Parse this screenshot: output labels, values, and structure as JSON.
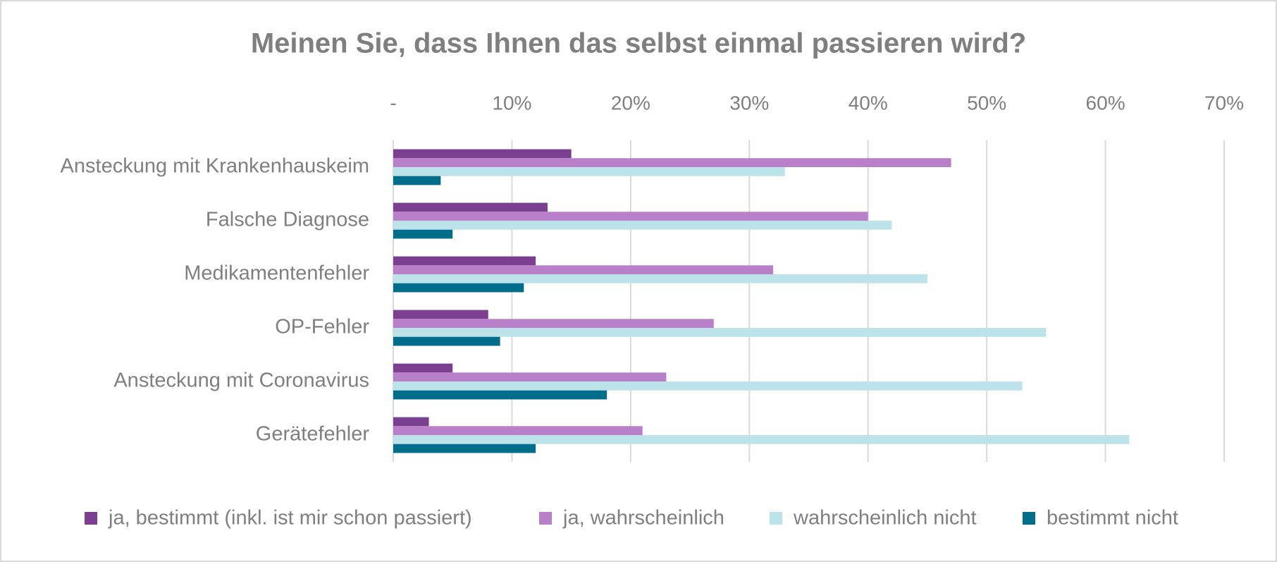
{
  "chart_data": {
    "type": "bar",
    "orientation": "horizontal",
    "title": "Meinen Sie, dass Ihnen das selbst einmal passieren wird?",
    "categories": [
      "Ansteckung mit Krankenhauskeim",
      "Falsche Diagnose",
      "Medikamentenfehler",
      "OP-Fehler",
      "Ansteckung mit Coronavirus",
      "Gerätefehler"
    ],
    "series": [
      {
        "name": "ja, bestimmt (inkl. ist mir schon passiert)",
        "color": "#7b3f8f",
        "values": [
          15,
          13,
          12,
          8,
          5,
          3
        ]
      },
      {
        "name": "ja, wahrscheinlich",
        "color": "#b97fc9",
        "values": [
          47,
          40,
          32,
          27,
          23,
          21
        ]
      },
      {
        "name": "wahrscheinlich nicht",
        "color": "#bde3ea",
        "values": [
          33,
          42,
          45,
          55,
          53,
          62
        ]
      },
      {
        "name": "bestimmt nicht",
        "color": "#006e8a",
        "values": [
          4,
          5,
          11,
          9,
          18,
          12
        ]
      }
    ],
    "xlim": [
      0,
      70
    ],
    "xticks": [
      {
        "value": 0,
        "label": "-"
      },
      {
        "value": 10,
        "label": "10%"
      },
      {
        "value": 20,
        "label": "20%"
      },
      {
        "value": 30,
        "label": "30%"
      },
      {
        "value": 40,
        "label": "40%"
      },
      {
        "value": 50,
        "label": "50%"
      },
      {
        "value": 60,
        "label": "60%"
      },
      {
        "value": 70,
        "label": "70%"
      }
    ],
    "grid": true,
    "legend": "bottom"
  }
}
